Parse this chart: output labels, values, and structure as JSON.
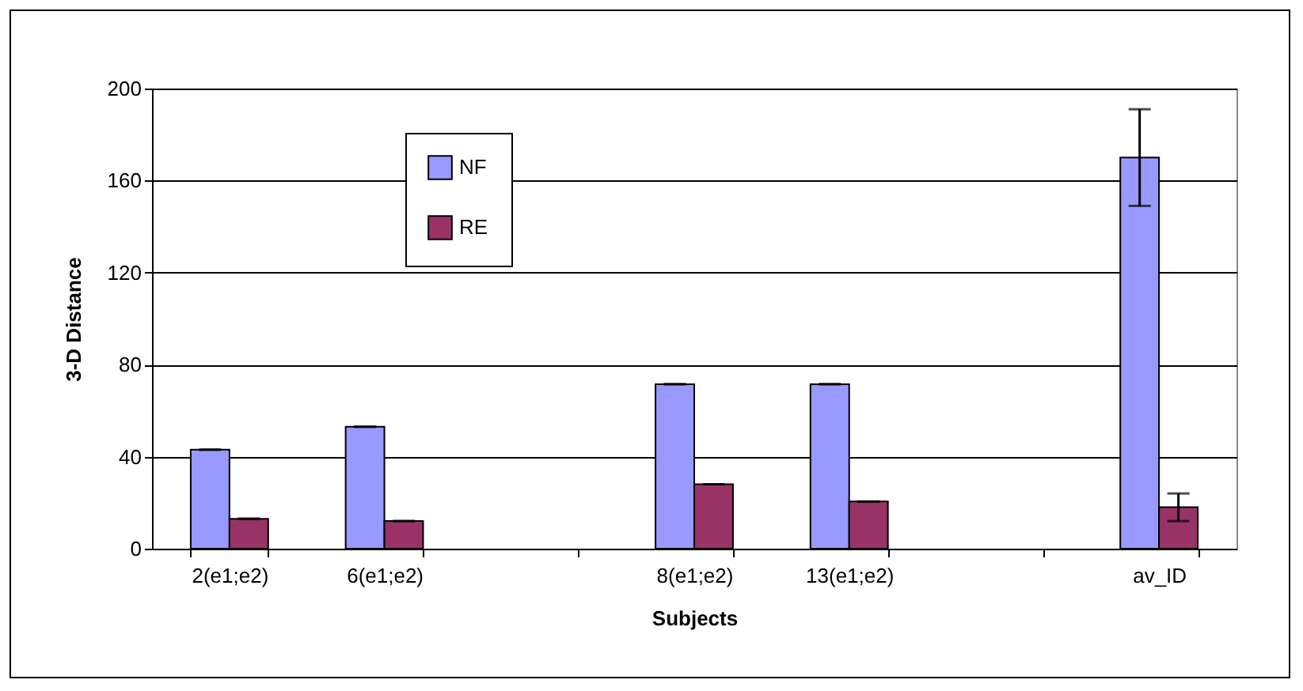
{
  "chart_data": {
    "type": "bar",
    "xlabel": "Subjects",
    "ylabel": "3-D Distance",
    "categories": [
      "2(e1;e2)",
      "6(e1;e2)",
      null,
      "8(e1;e2)",
      "13(e1;e2)",
      null,
      "av_ID"
    ],
    "series": [
      {
        "name": "NF",
        "color": "#9999ff",
        "values": [
          43,
          53,
          null,
          71.5,
          71.5,
          null,
          170
        ],
        "errors": [
          0,
          0,
          null,
          0,
          0,
          null,
          21
        ]
      },
      {
        "name": "RE",
        "color": "#993366",
        "values": [
          13,
          12,
          null,
          28,
          20.5,
          null,
          18
        ],
        "errors": [
          0,
          0,
          null,
          0,
          0,
          null,
          6
        ]
      }
    ],
    "ylim": [
      0,
      200
    ],
    "yticks": [
      0,
      40,
      80,
      120,
      160,
      200
    ],
    "grid": "y",
    "legend": "top left"
  }
}
